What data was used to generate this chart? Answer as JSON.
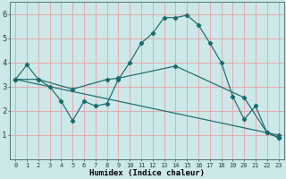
{
  "title": "",
  "xlabel": "Humidex (Indice chaleur)",
  "ylabel": "",
  "bg_color": "#cce8e8",
  "grid_color": "#e8a0a8",
  "line_color": "#1a6b6b",
  "xlim": [
    -0.5,
    23.5
  ],
  "ylim": [
    0,
    6.5
  ],
  "xtick_vals": [
    0,
    1,
    2,
    3,
    4,
    5,
    6,
    7,
    8,
    9,
    10,
    11,
    12,
    13,
    14,
    15,
    16,
    17,
    18,
    19,
    20,
    21,
    22,
    23
  ],
  "ytick_vals": [
    1,
    2,
    3,
    4,
    5,
    6
  ],
  "line1_x": [
    0,
    1,
    2,
    3,
    4,
    5,
    6,
    7,
    8,
    9,
    10,
    11,
    12,
    13,
    14,
    15,
    16,
    17,
    18,
    19,
    20,
    21,
    22,
    23
  ],
  "line1_y": [
    3.3,
    3.9,
    3.3,
    3.0,
    2.4,
    1.6,
    2.4,
    2.2,
    2.3,
    3.3,
    4.0,
    4.8,
    5.2,
    5.85,
    5.85,
    5.95,
    5.55,
    4.8,
    4.0,
    2.6,
    1.65,
    2.2,
    1.1,
    0.9
  ],
  "line2_x": [
    0,
    2,
    5,
    8,
    9,
    14,
    20,
    22,
    23
  ],
  "line2_y": [
    3.3,
    3.3,
    2.9,
    3.3,
    3.35,
    3.85,
    2.55,
    1.1,
    0.9
  ],
  "line3_x": [
    0,
    23
  ],
  "line3_y": [
    3.3,
    1.0
  ],
  "xlabel_fontsize": 6.5,
  "xtick_fontsize": 5.0,
  "ytick_fontsize": 6.5
}
